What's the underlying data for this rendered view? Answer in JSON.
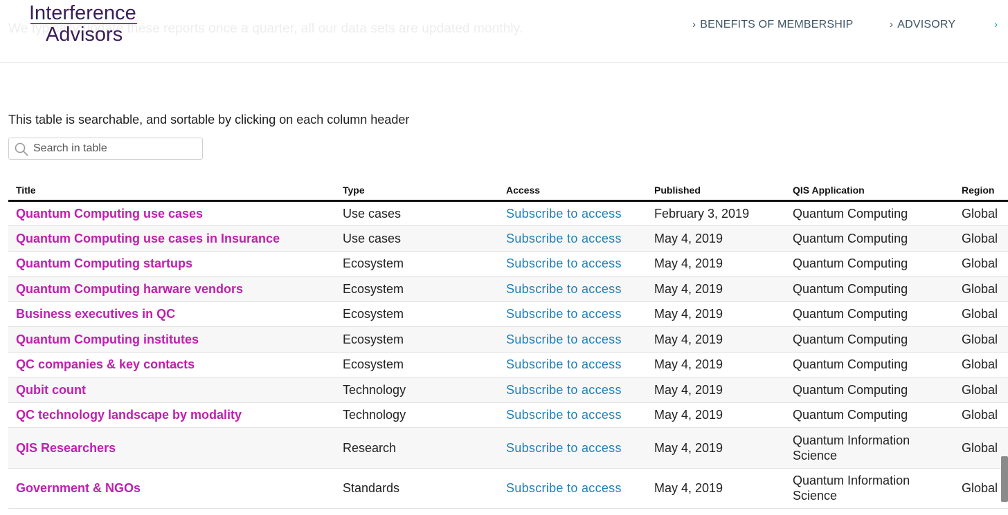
{
  "header": {
    "background_text": "We typically update these reports once a quarter, all our data sets are updated monthly.",
    "logo": {
      "line1": "Interference",
      "line2": "Advisors"
    },
    "nav": [
      {
        "label": "BENEFITS OF MEMBERSHIP",
        "icon": "chevron-right-icon"
      },
      {
        "label": "ADVISORY",
        "icon": "chevron-right-icon"
      }
    ]
  },
  "intro_text": "This table is searchable, and sortable by clicking on each column header",
  "search": {
    "placeholder": "Search in table",
    "value": "",
    "icon": "search-icon"
  },
  "table": {
    "columns": [
      "Title",
      "Type",
      "Access",
      "Published",
      "QIS Application",
      "Region"
    ],
    "rows": [
      {
        "title": "Quantum Computing use cases",
        "type": "Use cases",
        "access": "Subscribe to access",
        "published": "February 3, 2019",
        "qis": "Quantum Computing",
        "region": "Global"
      },
      {
        "title": "Quantum Computing use cases in Insurance",
        "type": "Use cases",
        "access": "Subscribe to access",
        "published": "May 4, 2019",
        "qis": "Quantum Computing",
        "region": "Global"
      },
      {
        "title": "Quantum Computing startups",
        "type": "Ecosystem",
        "access": "Subscribe to access",
        "published": "May 4, 2019",
        "qis": "Quantum Computing",
        "region": "Global"
      },
      {
        "title": "Quantum Computing harware vendors",
        "type": "Ecosystem",
        "access": "Subscribe to access",
        "published": "May 4, 2019",
        "qis": "Quantum Computing",
        "region": "Global"
      },
      {
        "title": "Business executives in QC",
        "type": "Ecosystem",
        "access": "Subscribe to access",
        "published": "May 4, 2019",
        "qis": "Quantum Computing",
        "region": "Global"
      },
      {
        "title": "Quantum Computing institutes",
        "type": "Ecosystem",
        "access": "Subscribe to access",
        "published": "May 4, 2019",
        "qis": "Quantum Computing",
        "region": "Global"
      },
      {
        "title": "QC companies & key contacts",
        "type": "Ecosystem",
        "access": "Subscribe to access",
        "published": "May 4, 2019",
        "qis": "Quantum Computing",
        "region": "Global"
      },
      {
        "title": "Qubit count",
        "type": "Technology",
        "access": "Subscribe to access",
        "published": "May 4, 2019",
        "qis": "Quantum Computing",
        "region": "Global"
      },
      {
        "title": "QC technology landscape by modality",
        "type": "Technology",
        "access": "Subscribe to access",
        "published": "May 4, 2019",
        "qis": "Quantum Computing",
        "region": "Global"
      },
      {
        "title": "QIS Researchers",
        "type": "Research",
        "access": "Subscribe to access",
        "published": "May 4, 2019",
        "qis": "Quantum Information Science",
        "region": "Global"
      },
      {
        "title": "Government & NGOs",
        "type": "Standards",
        "access": "Subscribe to access",
        "published": "May 4, 2019",
        "qis": "Quantum Information Science",
        "region": "Global"
      }
    ]
  },
  "colors": {
    "title_link": "#bf1fae",
    "access_link": "#1f7fb8",
    "nav_text": "#3b5466",
    "logo_text": "#3a1d57",
    "logo_accent": "#c21b9e"
  }
}
